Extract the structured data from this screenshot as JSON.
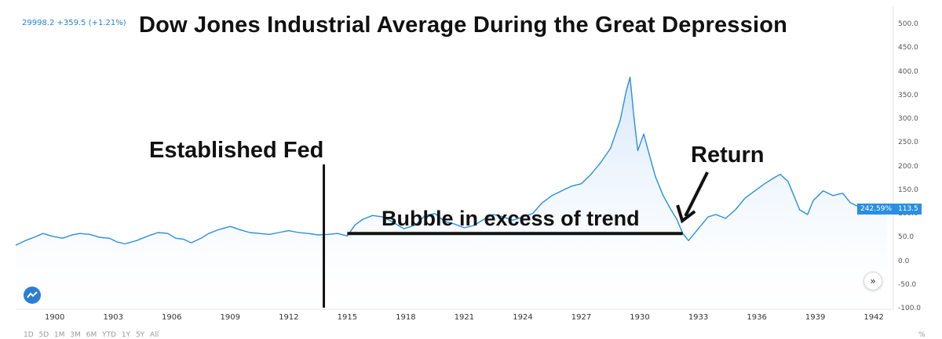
{
  "header": {
    "quote": "29998.2 +359.5 (+1.21%)"
  },
  "chart_data": {
    "type": "area",
    "title": "Dow Jones Industrial Average During the Great Depression",
    "xlabel": "",
    "ylabel": "",
    "xlim": [
      1898,
      1943
    ],
    "ylim": [
      -100,
      520
    ],
    "grid": false,
    "line_color": "#2a8fe0",
    "fill_color": "#d9eafb",
    "yticks": [
      "500.0",
      "450.0",
      "400.0",
      "350.0",
      "300.0",
      "250.0",
      "200.0",
      "150.0",
      "100.0",
      "50.0",
      "0.0",
      "-50.0",
      "-100.0"
    ],
    "xticks": [
      "1900",
      "1903",
      "1906",
      "1909",
      "1912",
      "1915",
      "1918",
      "1921",
      "1924",
      "1927",
      "1930",
      "1933",
      "1936",
      "1939",
      "1942"
    ],
    "series": [
      {
        "x": [
          1898.0,
          1898.5,
          1899.0,
          1899.4,
          1899.9,
          1900.4,
          1900.9,
          1901.3,
          1901.8,
          1902.3,
          1902.8,
          1903.2,
          1903.6,
          1904.2,
          1904.8,
          1905.3,
          1905.8,
          1906.2,
          1906.6,
          1907.0,
          1907.5,
          1907.9,
          1908.4,
          1909.0,
          1909.5,
          1910.0,
          1910.5,
          1911.0,
          1911.5,
          1912.0,
          1912.5,
          1913.0,
          1913.5,
          1914.0,
          1914.5,
          1915.0,
          1915.4,
          1915.8,
          1916.3,
          1916.8,
          1917.3,
          1917.9,
          1918.5,
          1919.0,
          1919.5,
          1920.0,
          1920.5,
          1921.0,
          1921.5,
          1922.0,
          1922.5,
          1923.0,
          1923.5,
          1924.0,
          1924.5,
          1925.0,
          1925.5,
          1926.0,
          1926.5,
          1927.0,
          1927.5,
          1928.0,
          1928.5,
          1929.0,
          1929.3,
          1929.5,
          1929.7,
          1929.9,
          1930.2,
          1930.5,
          1930.8,
          1931.2,
          1931.6,
          1931.9,
          1932.2,
          1932.5,
          1932.8,
          1933.1,
          1933.5,
          1933.9,
          1934.4,
          1934.9,
          1935.4,
          1935.9,
          1936.4,
          1936.9,
          1937.2,
          1937.6,
          1937.9,
          1938.2,
          1938.6,
          1938.9,
          1939.4,
          1939.9,
          1940.4,
          1940.8,
          1941.3,
          1941.8,
          1942.3,
          1942.7
        ],
        "y": [
          35,
          45,
          53,
          60,
          54,
          50,
          57,
          60,
          58,
          52,
          50,
          42,
          38,
          45,
          55,
          62,
          60,
          50,
          48,
          40,
          50,
          60,
          68,
          75,
          68,
          62,
          60,
          58,
          62,
          66,
          62,
          60,
          57,
          58,
          60,
          55,
          78,
          90,
          98,
          95,
          85,
          70,
          78,
          98,
          102,
          85,
          80,
          72,
          77,
          90,
          100,
          95,
          88,
          95,
          102,
          125,
          140,
          150,
          160,
          165,
          185,
          210,
          240,
          300,
          360,
          390,
          305,
          235,
          270,
          225,
          180,
          140,
          110,
          90,
          60,
          45,
          60,
          75,
          95,
          100,
          92,
          110,
          135,
          150,
          165,
          178,
          185,
          170,
          140,
          110,
          100,
          130,
          150,
          140,
          145,
          125,
          115,
          108,
          112,
          113.5
        ]
      }
    ],
    "last_value_pct": "242.59%",
    "last_value": "113.5",
    "annotations": [
      {
        "text": "Established Fed",
        "x": 1913.8
      },
      {
        "text": "Return",
        "x": 1932.5
      },
      {
        "text": "Bubble in excess of trend",
        "x_start": 1915.0,
        "x_end": 1932.2,
        "y": 60
      }
    ]
  },
  "ui": {
    "nav_button": "»",
    "bottom_range": "1D 5D 1M 3M 6M YTD 1Y 5Y All",
    "percent_toggle": "%"
  }
}
